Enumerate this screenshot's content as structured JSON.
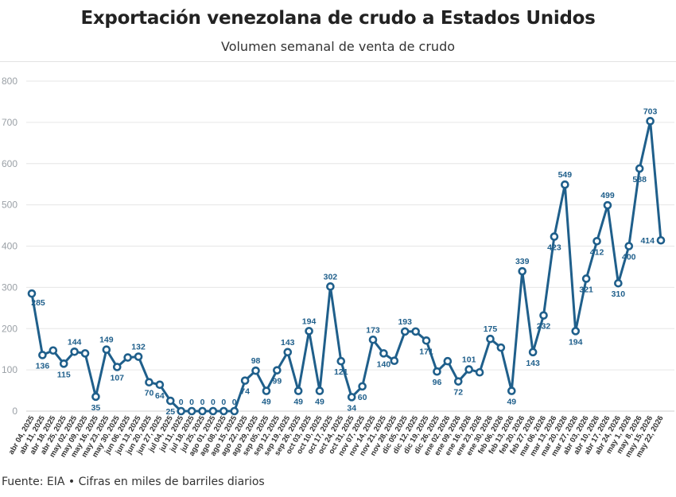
{
  "title": "Exportación venezolana de crudo a Estados Unidos",
  "subtitle": "Volumen semanal de venta de crudo",
  "source": "Fuente: EIA • Cifras en miles de barriles diarios",
  "colors": {
    "line": "#1f5f8b",
    "label": "#1f5f8b",
    "grid": "#e6e6e6",
    "point_fill": "#ffffff"
  },
  "chart_data": {
    "type": "line",
    "title": "Exportación venezolana de crudo a Estados Unidos",
    "subtitle": "Volumen semanal de venta de crudo",
    "xlabel": "",
    "ylabel": "",
    "ylim": [
      0,
      800
    ],
    "yticks": [
      0,
      100,
      200,
      300,
      400,
      500,
      600,
      700,
      800
    ],
    "grid": true,
    "categories": [
      "abr 04, 2025",
      "abr 11, 2025",
      "abr 18, 2025",
      "abr 25, 2025",
      "may 02, 2025",
      "may 09, 2025",
      "may 16, 2025",
      "may 23, 2025",
      "may 30, 2025",
      "jun 06, 2025",
      "jun 13, 2025",
      "jun 20, 2025",
      "jun 27, 2025",
      "jul 04, 2025",
      "jul 11, 2025",
      "jul 18, 2025",
      "jul 25, 2025",
      "ago 01, 2025",
      "ago 08, 2025",
      "ago 15, 2025",
      "ago 22, 2025",
      "ago 29, 2025",
      "sep 05, 2025",
      "sep 12, 2025",
      "sep 19, 2025",
      "sep 26, 2025",
      "oct 03, 2025",
      "oct 10, 2025",
      "oct 17, 2025",
      "oct 24, 2025",
      "oct 31, 2025",
      "nov 07, 2025",
      "nov 14, 2025",
      "nov 21, 2025",
      "nov 28, 2025",
      "dic 05, 2025",
      "dic 12, 2025",
      "dic 19, 2025",
      "dic 26, 2025",
      "ene 02, 2026",
      "ene 09, 2026",
      "ene 16, 2026",
      "ene 23, 2026",
      "ene 30, 2026",
      "feb 06, 2026",
      "feb 13, 2026",
      "feb 20, 2026",
      "feb 27, 2026",
      "mar 06, 2026",
      "mar 13, 2026",
      "mar 20, 2026",
      "mar 27, 2026",
      "abr 03, 2026",
      "abr 10, 2026",
      "abr 17, 2026",
      "abr 24, 2026",
      "may 1, 2026",
      "may 8, 2026",
      "may 15, 2026",
      "may 22, 2026"
    ],
    "values": [
      285,
      136,
      147,
      115,
      144,
      140,
      35,
      149,
      107,
      130,
      132,
      70,
      64,
      25,
      0,
      0,
      0,
      0,
      0,
      0,
      74,
      98,
      49,
      99,
      143,
      49,
      194,
      49,
      302,
      121,
      34,
      60,
      173,
      140,
      122,
      193,
      193,
      171,
      96,
      121,
      72,
      101,
      94,
      175,
      154,
      49,
      339,
      143,
      232,
      423,
      549,
      194,
      321,
      412,
      499,
      310,
      400,
      588,
      703,
      414
    ],
    "labeled_values": [
      285,
      136,
      null,
      115,
      144,
      null,
      35,
      149,
      107,
      null,
      132,
      70,
      64,
      25,
      0,
      0,
      0,
      0,
      0,
      0,
      74,
      98,
      49,
      99,
      143,
      49,
      194,
      49,
      302,
      121,
      34,
      60,
      173,
      140,
      null,
      193,
      null,
      171,
      96,
      null,
      72,
      101,
      null,
      175,
      null,
      49,
      339,
      143,
      232,
      423,
      549,
      194,
      321,
      412,
      499,
      310,
      400,
      588,
      703,
      414
    ]
  }
}
